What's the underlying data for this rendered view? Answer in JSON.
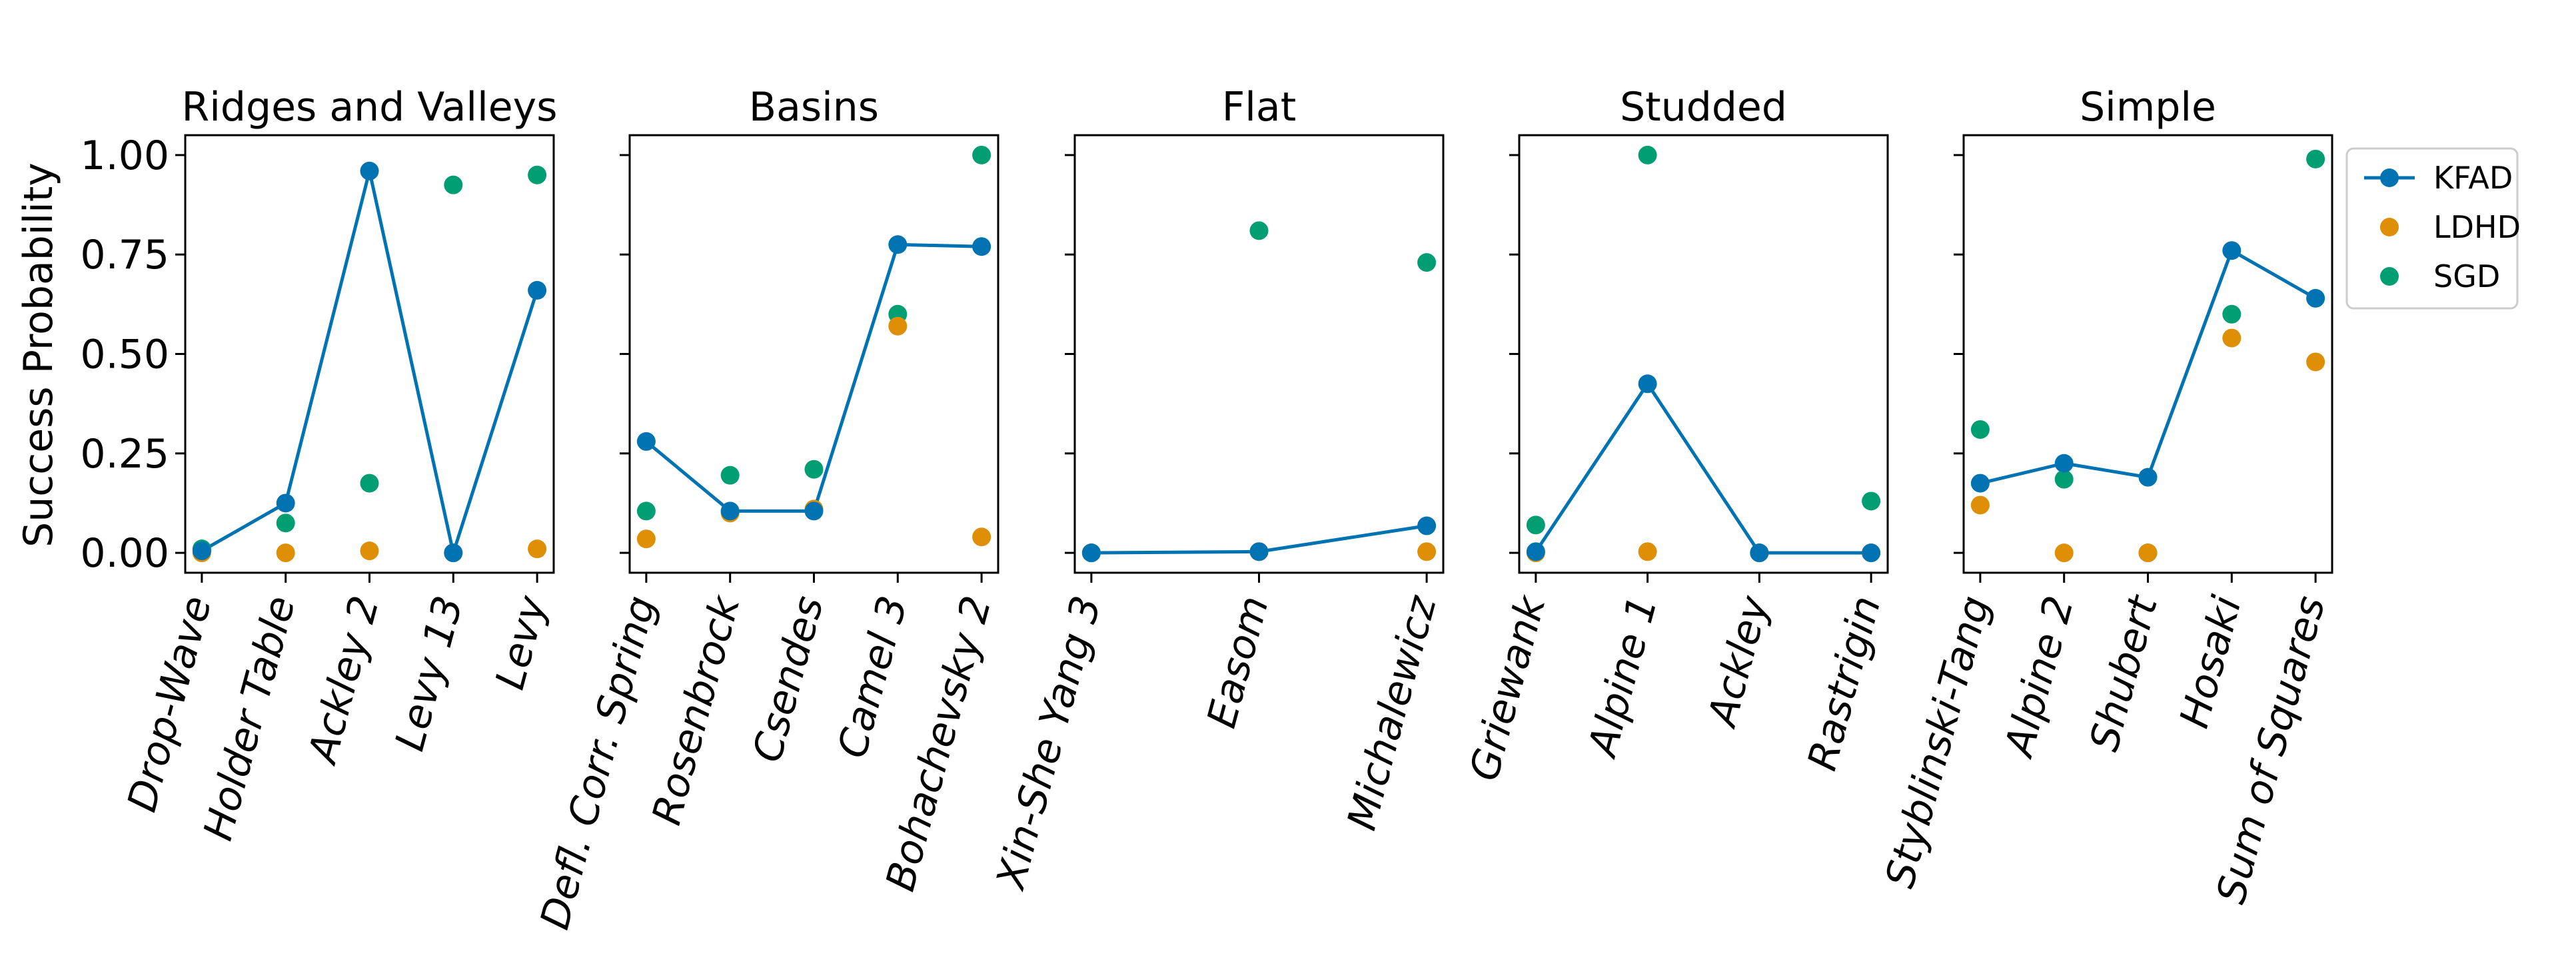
{
  "chart_data": {
    "type": "scatter",
    "ylabel": "Success Probability",
    "ylim": [
      -0.05,
      1.05
    ],
    "yticks": [
      0.0,
      0.25,
      0.5,
      0.75,
      1.0
    ],
    "ytick_labels": [
      "0.00",
      "0.25",
      "0.50",
      "0.75",
      "1.00"
    ],
    "legend_position": "right",
    "legend": [
      {
        "name": "KFAD",
        "marker": "line-with-dot",
        "color": "#0173b2"
      },
      {
        "name": "LDHD",
        "marker": "dot",
        "color": "#de8f05"
      },
      {
        "name": "SGD",
        "marker": "dot",
        "color": "#029e73"
      }
    ],
    "panels": [
      {
        "title": "Ridges and Valleys",
        "categories": [
          "Drop-Wave",
          "Holder Table",
          "Ackley 2",
          "Levy 13",
          "Levy"
        ],
        "series": [
          {
            "name": "KFAD",
            "values": [
              0.005,
              0.125,
              0.96,
              0.0,
              0.66
            ]
          },
          {
            "name": "LDHD",
            "values": [
              0.0,
              0.0,
              0.005,
              0.0,
              0.01
            ]
          },
          {
            "name": "SGD",
            "values": [
              0.01,
              0.075,
              0.175,
              0.925,
              0.95
            ]
          }
        ]
      },
      {
        "title": "Basins",
        "categories": [
          "Defl. Corr. Spring",
          "Rosenbrock",
          "Csendes",
          "Camel 3",
          "Bohachevsky 2"
        ],
        "series": [
          {
            "name": "KFAD",
            "values": [
              0.28,
              0.105,
              0.105,
              0.775,
              0.77
            ]
          },
          {
            "name": "LDHD",
            "values": [
              0.035,
              0.1,
              0.11,
              0.57,
              0.04
            ]
          },
          {
            "name": "SGD",
            "values": [
              0.105,
              0.195,
              0.21,
              0.6,
              1.0
            ]
          }
        ]
      },
      {
        "title": "Flat",
        "categories": [
          "Xin-She Yang 3",
          "Easom",
          "Michalewicz"
        ],
        "series": [
          {
            "name": "KFAD",
            "values": [
              0.0,
              0.003,
              0.068
            ]
          },
          {
            "name": "LDHD",
            "values": [
              0.0,
              0.003,
              0.003
            ]
          },
          {
            "name": "SGD",
            "values": [
              0.0,
              0.81,
              0.73
            ]
          }
        ]
      },
      {
        "title": "Studded",
        "categories": [
          "Griewank",
          "Alpine 1",
          "Ackley",
          "Rastrigin"
        ],
        "series": [
          {
            "name": "KFAD",
            "values": [
              0.003,
              0.425,
              0.0,
              0.0
            ]
          },
          {
            "name": "LDHD",
            "values": [
              0.0,
              0.003,
              0.0,
              0.0
            ]
          },
          {
            "name": "SGD",
            "values": [
              0.07,
              1.0,
              0.0,
              0.13
            ]
          }
        ]
      },
      {
        "title": "Simple",
        "categories": [
          "Styblinski-Tang",
          "Alpine 2",
          "Shubert",
          "Hosaki",
          "Sum of Squares"
        ],
        "series": [
          {
            "name": "KFAD",
            "values": [
              0.175,
              0.225,
              0.19,
              0.76,
              0.64
            ]
          },
          {
            "name": "LDHD",
            "values": [
              0.12,
              0.0,
              0.0,
              0.54,
              0.48
            ]
          },
          {
            "name": "SGD",
            "values": [
              0.31,
              0.185,
              0.0,
              0.6,
              0.99
            ]
          }
        ]
      }
    ]
  }
}
